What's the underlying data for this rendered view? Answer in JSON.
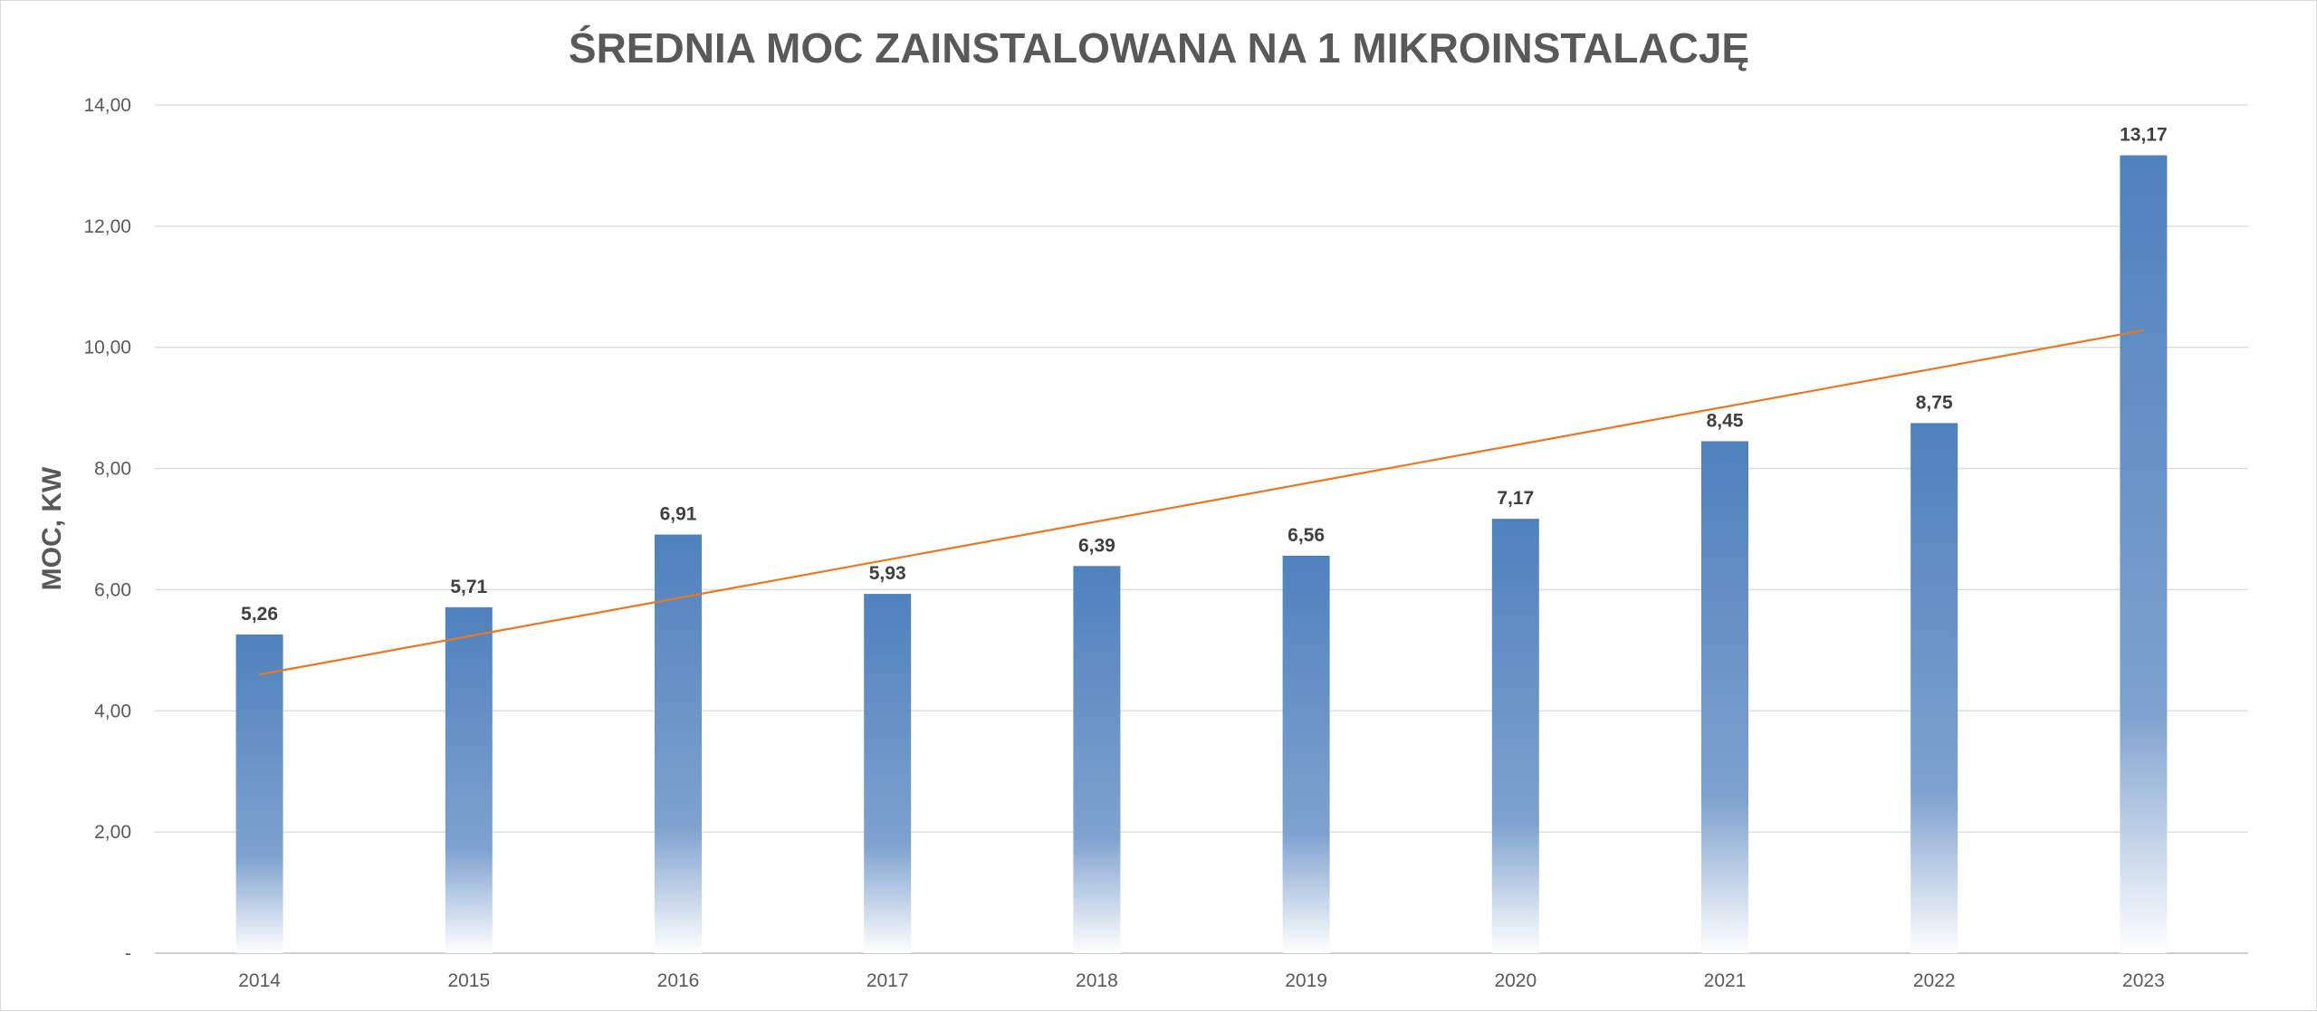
{
  "chart_data": {
    "type": "bar",
    "title": "ŚREDNIA MOC ZAINSTALOWANA NA 1 MIKROINSTALACJĘ",
    "xlabel": "",
    "ylabel": "MOC, KW",
    "categories": [
      "2014",
      "2015",
      "2016",
      "2017",
      "2018",
      "2019",
      "2020",
      "2021",
      "2022",
      "2023"
    ],
    "values": [
      5.26,
      5.71,
      6.91,
      5.93,
      6.39,
      6.56,
      7.17,
      8.45,
      8.75,
      13.17
    ],
    "data_labels": [
      "5,26",
      "5,71",
      "6,91",
      "5,93",
      "6,39",
      "6,56",
      "7,17",
      "8,45",
      "8,75",
      "13,17"
    ],
    "ylim": [
      0,
      14
    ],
    "yticks": [
      0,
      2,
      4,
      6,
      8,
      10,
      12,
      14
    ],
    "ytick_labels": [
      "-",
      "2,00",
      "4,00",
      "6,00",
      "8,00",
      "10,00",
      "12,00",
      "14,00"
    ],
    "grid": true,
    "legend": "none",
    "trendline": {
      "type": "linear",
      "start": 4.6,
      "end": 10.28
    },
    "colors": {
      "bar_top": "#4f81bd",
      "bar_bottom": "#ffffff",
      "trendline": "#e87722",
      "grid": "#d9d9d9",
      "axis": "#bfbfbf"
    }
  }
}
